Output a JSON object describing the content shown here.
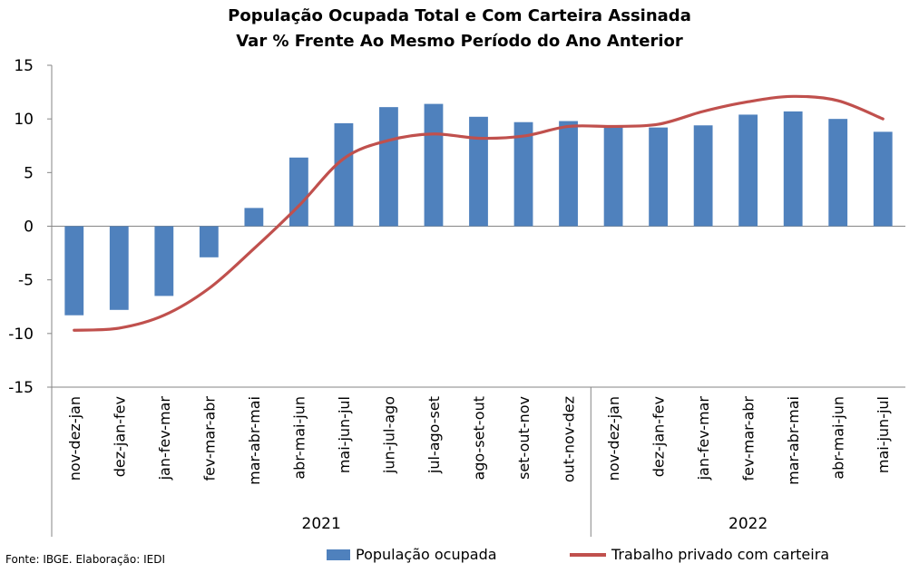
{
  "chart_data": {
    "type": "bar",
    "title": "População Ocupada Total e Com Carteira Assinada",
    "subtitle": "Var % Frente Ao Mesmo Período do Ano Anterior",
    "ylim": [
      -15,
      15
    ],
    "yticks": [
      15,
      10,
      5,
      0,
      -5,
      -10,
      -15
    ],
    "categories": [
      "nov-dez-jan",
      "dez-jan-fev",
      "jan-fev-mar",
      "fev-mar-abr",
      "mar-abr-mai",
      "abr-mai-jun",
      "mai-jun-jul",
      "jun-jul-ago",
      "jul-ago-set",
      "ago-set-out",
      "set-out-nov",
      "out-nov-dez",
      "nov-dez-jan",
      "dez-jan-fev",
      "jan-fev-mar",
      "fev-mar-abr",
      "mar-abr-mai",
      "abr-mai-jun",
      "mai-jun-jul"
    ],
    "groups": [
      {
        "label": "2021",
        "count": 12
      },
      {
        "label": "2022",
        "count": 7
      }
    ],
    "series": [
      {
        "name": "População ocupada",
        "kind": "bar",
        "color": "#4f81bd",
        "values": [
          -8.3,
          -7.8,
          -6.5,
          -2.9,
          1.7,
          6.4,
          9.6,
          11.1,
          11.4,
          10.2,
          9.7,
          9.8,
          9.3,
          9.2,
          9.4,
          10.4,
          10.7,
          10.0,
          8.8
        ]
      },
      {
        "name": "Trabalho privado com carteira",
        "kind": "line",
        "color": "#c0504d",
        "values": [
          -9.7,
          -9.5,
          -8.3,
          -5.8,
          -2.1,
          1.9,
          6.3,
          8.0,
          8.6,
          8.2,
          8.4,
          9.3,
          9.3,
          9.5,
          10.7,
          11.6,
          12.1,
          11.7,
          10.0
        ]
      }
    ],
    "grid": false,
    "legend_position": "bottom"
  },
  "source_note": "Fonte: IBGE. Elaboração: IEDI"
}
